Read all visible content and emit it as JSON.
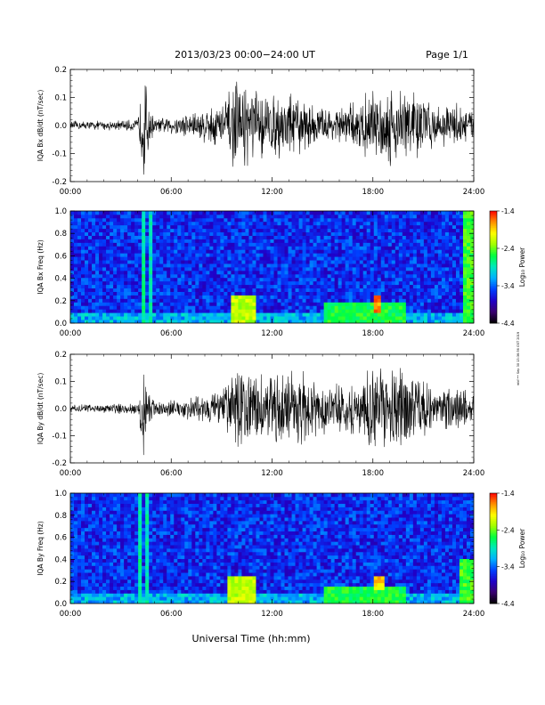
{
  "header": {
    "title": "2013/03/23  00:00−24:00 UT",
    "page": "Page 1/1"
  },
  "footer": {
    "xlabel": "Universal Time (hh:mm)",
    "side_note": "mkf •• Sep 30 13:36:56 GST 2019"
  },
  "chart_data": [
    {
      "type": "line",
      "ylabel": "IQA Bx dB/dt (nT/sec)",
      "ylim": [
        -0.2,
        0.2
      ],
      "yticks": [
        "-0.2",
        "-0.1",
        "0.0",
        "0.1",
        "0.2"
      ],
      "xlim": [
        0,
        24
      ],
      "xticks": [
        "00:00",
        "06:00",
        "12:00",
        "18:00",
        "24:00"
      ],
      "series_color": "#000000",
      "activity_envelope": {
        "x_hours": [
          0,
          2,
          4,
          4.4,
          4.6,
          5,
          6,
          8,
          9,
          9.5,
          10,
          11,
          12,
          13,
          14,
          15,
          16,
          17,
          18,
          19,
          20,
          21,
          22,
          23,
          24
        ],
        "amplitude": [
          0.015,
          0.015,
          0.02,
          0.2,
          0.1,
          0.02,
          0.03,
          0.06,
          0.08,
          0.12,
          0.15,
          0.12,
          0.1,
          0.12,
          0.08,
          0.06,
          0.06,
          0.08,
          0.12,
          0.13,
          0.14,
          0.1,
          0.06,
          0.08,
          0.05
        ]
      }
    },
    {
      "type": "heatmap",
      "ylabel": "IQA Bx Freq (Hz)",
      "ylim": [
        0,
        1
      ],
      "yticks": [
        "0.0",
        "0.2",
        "0.4",
        "0.6",
        "0.8",
        "1.0"
      ],
      "xlim": [
        0,
        24
      ],
      "xticks": [
        "00:00",
        "06:00",
        "12:00",
        "18:00",
        "24:00"
      ],
      "colorbar": {
        "label": "Log₁₀ Power",
        "ticks": [
          "-1.4",
          "-2.4",
          "-3.4",
          "-4.4"
        ],
        "range": [
          -4.4,
          -1.4
        ],
        "colors": [
          "#000000",
          "#3a0070",
          "#2000c8",
          "#0040ff",
          "#00b0ff",
          "#00e8c0",
          "#00ff40",
          "#a0ff00",
          "#ffff00",
          "#ff9000",
          "#ff0000"
        ]
      },
      "features": [
        {
          "x_hours": [
            4.2,
            4.4
          ],
          "f_hz": [
            0,
            1
          ],
          "level": -2.8
        },
        {
          "x_hours": [
            4.6,
            4.8
          ],
          "f_hz": [
            0,
            1
          ],
          "level": -2.9
        },
        {
          "x_hours": [
            9.5,
            11
          ],
          "f_hz": [
            0,
            0.25
          ],
          "level": -2.2
        },
        {
          "x_hours": [
            15,
            20
          ],
          "f_hz": [
            0,
            0.18
          ],
          "level": -2.6
        },
        {
          "x_hours": [
            18,
            18.5
          ],
          "f_hz": [
            0.1,
            0.25
          ],
          "level": -1.7
        },
        {
          "x_hours": [
            23.3,
            24
          ],
          "f_hz": [
            0,
            1
          ],
          "level": -2.5
        }
      ]
    },
    {
      "type": "line",
      "ylabel": "IQA By dB/dt (nT/sec)",
      "ylim": [
        -0.2,
        0.2
      ],
      "yticks": [
        "-0.2",
        "-0.1",
        "0.0",
        "0.1",
        "0.2"
      ],
      "xlim": [
        0,
        24
      ],
      "xticks": [
        "00:00",
        "06:00",
        "12:00",
        "18:00",
        "24:00"
      ],
      "series_color": "#000000",
      "activity_envelope": {
        "x_hours": [
          0,
          2,
          4,
          4.4,
          4.6,
          5,
          6,
          8,
          9,
          9.5,
          10,
          11,
          12,
          13,
          14,
          15,
          16,
          17,
          18,
          19,
          20,
          21,
          22,
          23,
          24
        ],
        "amplitude": [
          0.015,
          0.015,
          0.02,
          0.2,
          0.1,
          0.02,
          0.03,
          0.05,
          0.07,
          0.1,
          0.14,
          0.12,
          0.12,
          0.15,
          0.12,
          0.09,
          0.08,
          0.1,
          0.14,
          0.15,
          0.14,
          0.1,
          0.07,
          0.09,
          0.05
        ]
      }
    },
    {
      "type": "heatmap",
      "ylabel": "IQA By Freq (Hz)",
      "ylim": [
        0,
        1
      ],
      "yticks": [
        "0.0",
        "0.2",
        "0.4",
        "0.6",
        "0.8",
        "1.0"
      ],
      "xlim": [
        0,
        24
      ],
      "xticks": [
        "00:00",
        "06:00",
        "12:00",
        "18:00",
        "24:00"
      ],
      "colorbar": {
        "label": "Log₁₀ Power",
        "ticks": [
          "-1.4",
          "-2.4",
          "-3.4",
          "-4.4"
        ],
        "range": [
          -4.4,
          -1.4
        ],
        "colors": [
          "#000000",
          "#3a0070",
          "#2000c8",
          "#0040ff",
          "#00b0ff",
          "#00e8c0",
          "#00ff40",
          "#a0ff00",
          "#ffff00",
          "#ff9000",
          "#ff0000"
        ]
      },
      "features": [
        {
          "x_hours": [
            4.0,
            4.2
          ],
          "f_hz": [
            0,
            1
          ],
          "level": -2.8
        },
        {
          "x_hours": [
            4.5,
            4.7
          ],
          "f_hz": [
            0,
            1
          ],
          "level": -2.9
        },
        {
          "x_hours": [
            9.3,
            11
          ],
          "f_hz": [
            0,
            0.25
          ],
          "level": -2.2
        },
        {
          "x_hours": [
            15,
            20
          ],
          "f_hz": [
            0,
            0.16
          ],
          "level": -2.6
        },
        {
          "x_hours": [
            18,
            18.6
          ],
          "f_hz": [
            0.12,
            0.25
          ],
          "level": -1.9
        },
        {
          "x_hours": [
            23.2,
            24
          ],
          "f_hz": [
            0,
            0.4
          ],
          "level": -2.5
        }
      ]
    }
  ]
}
